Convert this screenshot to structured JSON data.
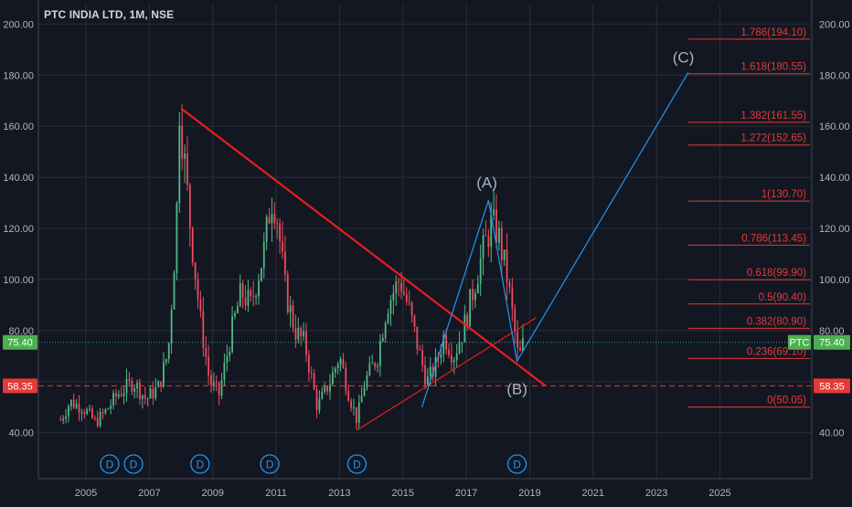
{
  "header": {
    "title": "PTC INDIA LTD, 1M, NSE"
  },
  "colors": {
    "background": "#131722",
    "grid": "#2a2e39",
    "axis_text": "#b2b5be",
    "candle_up": "#53b987",
    "candle_down": "#eb4d5c",
    "trendline": "#e91e1e",
    "wave_line": "#2196f3",
    "fib_text": "#e53935",
    "badge_price": "#4caf50",
    "badge_support": "#e53935"
  },
  "chart_data": {
    "type": "candlestick",
    "symbol": "PTC",
    "ylim": [
      22,
      208
    ],
    "xlim": [
      2003.5,
      2027.9
    ],
    "y_ticks": [
      "40.00",
      "60.00",
      "80.00",
      "100.00",
      "120.00",
      "140.00",
      "160.00",
      "180.00",
      "200.00"
    ],
    "y_tick_values": [
      40,
      60,
      80,
      100,
      120,
      140,
      160,
      180,
      200
    ],
    "x_ticks": [
      "2005",
      "2007",
      "2009",
      "2011",
      "2013",
      "2015",
      "2017",
      "2019",
      "2021",
      "2023",
      "2025"
    ],
    "x_tick_values": [
      2005,
      2007,
      2009,
      2011,
      2013,
      2015,
      2017,
      2019,
      2021,
      2023,
      2025
    ],
    "current_price": {
      "label": "75.40",
      "value": 75.4,
      "symbol_label": "PTC"
    },
    "support_level": {
      "label": "58.35",
      "value": 58.35
    },
    "price_path": [
      [
        2004.2,
        45
      ],
      [
        2004.5,
        52
      ],
      [
        2004.9,
        50
      ],
      [
        2005.3,
        44
      ],
      [
        2005.6,
        48
      ],
      [
        2006.0,
        55
      ],
      [
        2006.5,
        60
      ],
      [
        2006.9,
        53
      ],
      [
        2007.3,
        58
      ],
      [
        2007.6,
        72
      ],
      [
        2007.85,
        120
      ],
      [
        2007.95,
        168
      ],
      [
        2008.3,
        120
      ],
      [
        2008.6,
        85
      ],
      [
        2008.9,
        60
      ],
      [
        2009.2,
        55
      ],
      [
        2009.6,
        80
      ],
      [
        2009.9,
        95
      ],
      [
        2010.2,
        90
      ],
      [
        2010.6,
        110
      ],
      [
        2010.85,
        132
      ],
      [
        2011.0,
        128
      ],
      [
        2011.3,
        95
      ],
      [
        2011.6,
        80
      ],
      [
        2011.9,
        75
      ],
      [
        2012.3,
        50
      ],
      [
        2012.7,
        60
      ],
      [
        2013.0,
        70
      ],
      [
        2013.3,
        55
      ],
      [
        2013.55,
        45
      ],
      [
        2013.8,
        60
      ],
      [
        2014.2,
        70
      ],
      [
        2014.5,
        90
      ],
      [
        2014.9,
        100
      ],
      [
        2015.2,
        88
      ],
      [
        2015.5,
        72
      ],
      [
        2015.75,
        60
      ],
      [
        2016.0,
        65
      ],
      [
        2016.3,
        78
      ],
      [
        2016.6,
        70
      ],
      [
        2016.9,
        80
      ],
      [
        2017.2,
        95
      ],
      [
        2017.5,
        110
      ],
      [
        2017.8,
        122
      ],
      [
        2018.0,
        118
      ],
      [
        2018.3,
        100
      ],
      [
        2018.5,
        82
      ],
      [
        2018.65,
        68
      ],
      [
        2018.8,
        75.4
      ]
    ],
    "trendlines": [
      {
        "name": "descending-resistance",
        "from": [
          2008.0,
          167
        ],
        "to": [
          2019.5,
          58.35
        ]
      },
      {
        "name": "rising-support",
        "from": [
          2013.55,
          41
        ],
        "to": [
          2019.2,
          85
        ]
      }
    ],
    "wave_path": [
      [
        2015.6,
        50
      ],
      [
        2017.7,
        131
      ],
      [
        2018.6,
        68
      ],
      [
        2024.0,
        181
      ]
    ],
    "wave_labels": [
      {
        "label": "(A)",
        "x": 2017.65,
        "y": 136
      },
      {
        "label": "(B)",
        "x": 2018.6,
        "y": 55
      },
      {
        "label": "(C)",
        "x": 2023.85,
        "y": 185
      }
    ],
    "fib_levels": [
      {
        "label": "0(50.05)",
        "value": 50.05
      },
      {
        "label": "0.236(69.10)",
        "value": 69.1
      },
      {
        "label": "0.382(80.90)",
        "value": 80.9
      },
      {
        "label": "0.5(90.40)",
        "value": 90.4
      },
      {
        "label": "0.618(99.90)",
        "value": 99.9
      },
      {
        "label": "0.786(113.45)",
        "value": 113.45
      },
      {
        "label": "1(130.70)",
        "value": 130.7
      },
      {
        "label": "1.272(152.65)",
        "value": 152.65
      },
      {
        "label": "1.382(161.55)",
        "value": 161.55
      },
      {
        "label": "1.618(180.55)",
        "value": 180.55
      },
      {
        "label": "1.786(194.10)",
        "value": 194.1
      }
    ],
    "dividend_markers": [
      {
        "label": "D",
        "x": 2005.75
      },
      {
        "label": "D",
        "x": 2006.5
      },
      {
        "label": "D",
        "x": 2008.6
      },
      {
        "label": "D",
        "x": 2010.8
      },
      {
        "label": "D",
        "x": 2013.55
      },
      {
        "label": "D",
        "x": 2018.6
      }
    ]
  }
}
